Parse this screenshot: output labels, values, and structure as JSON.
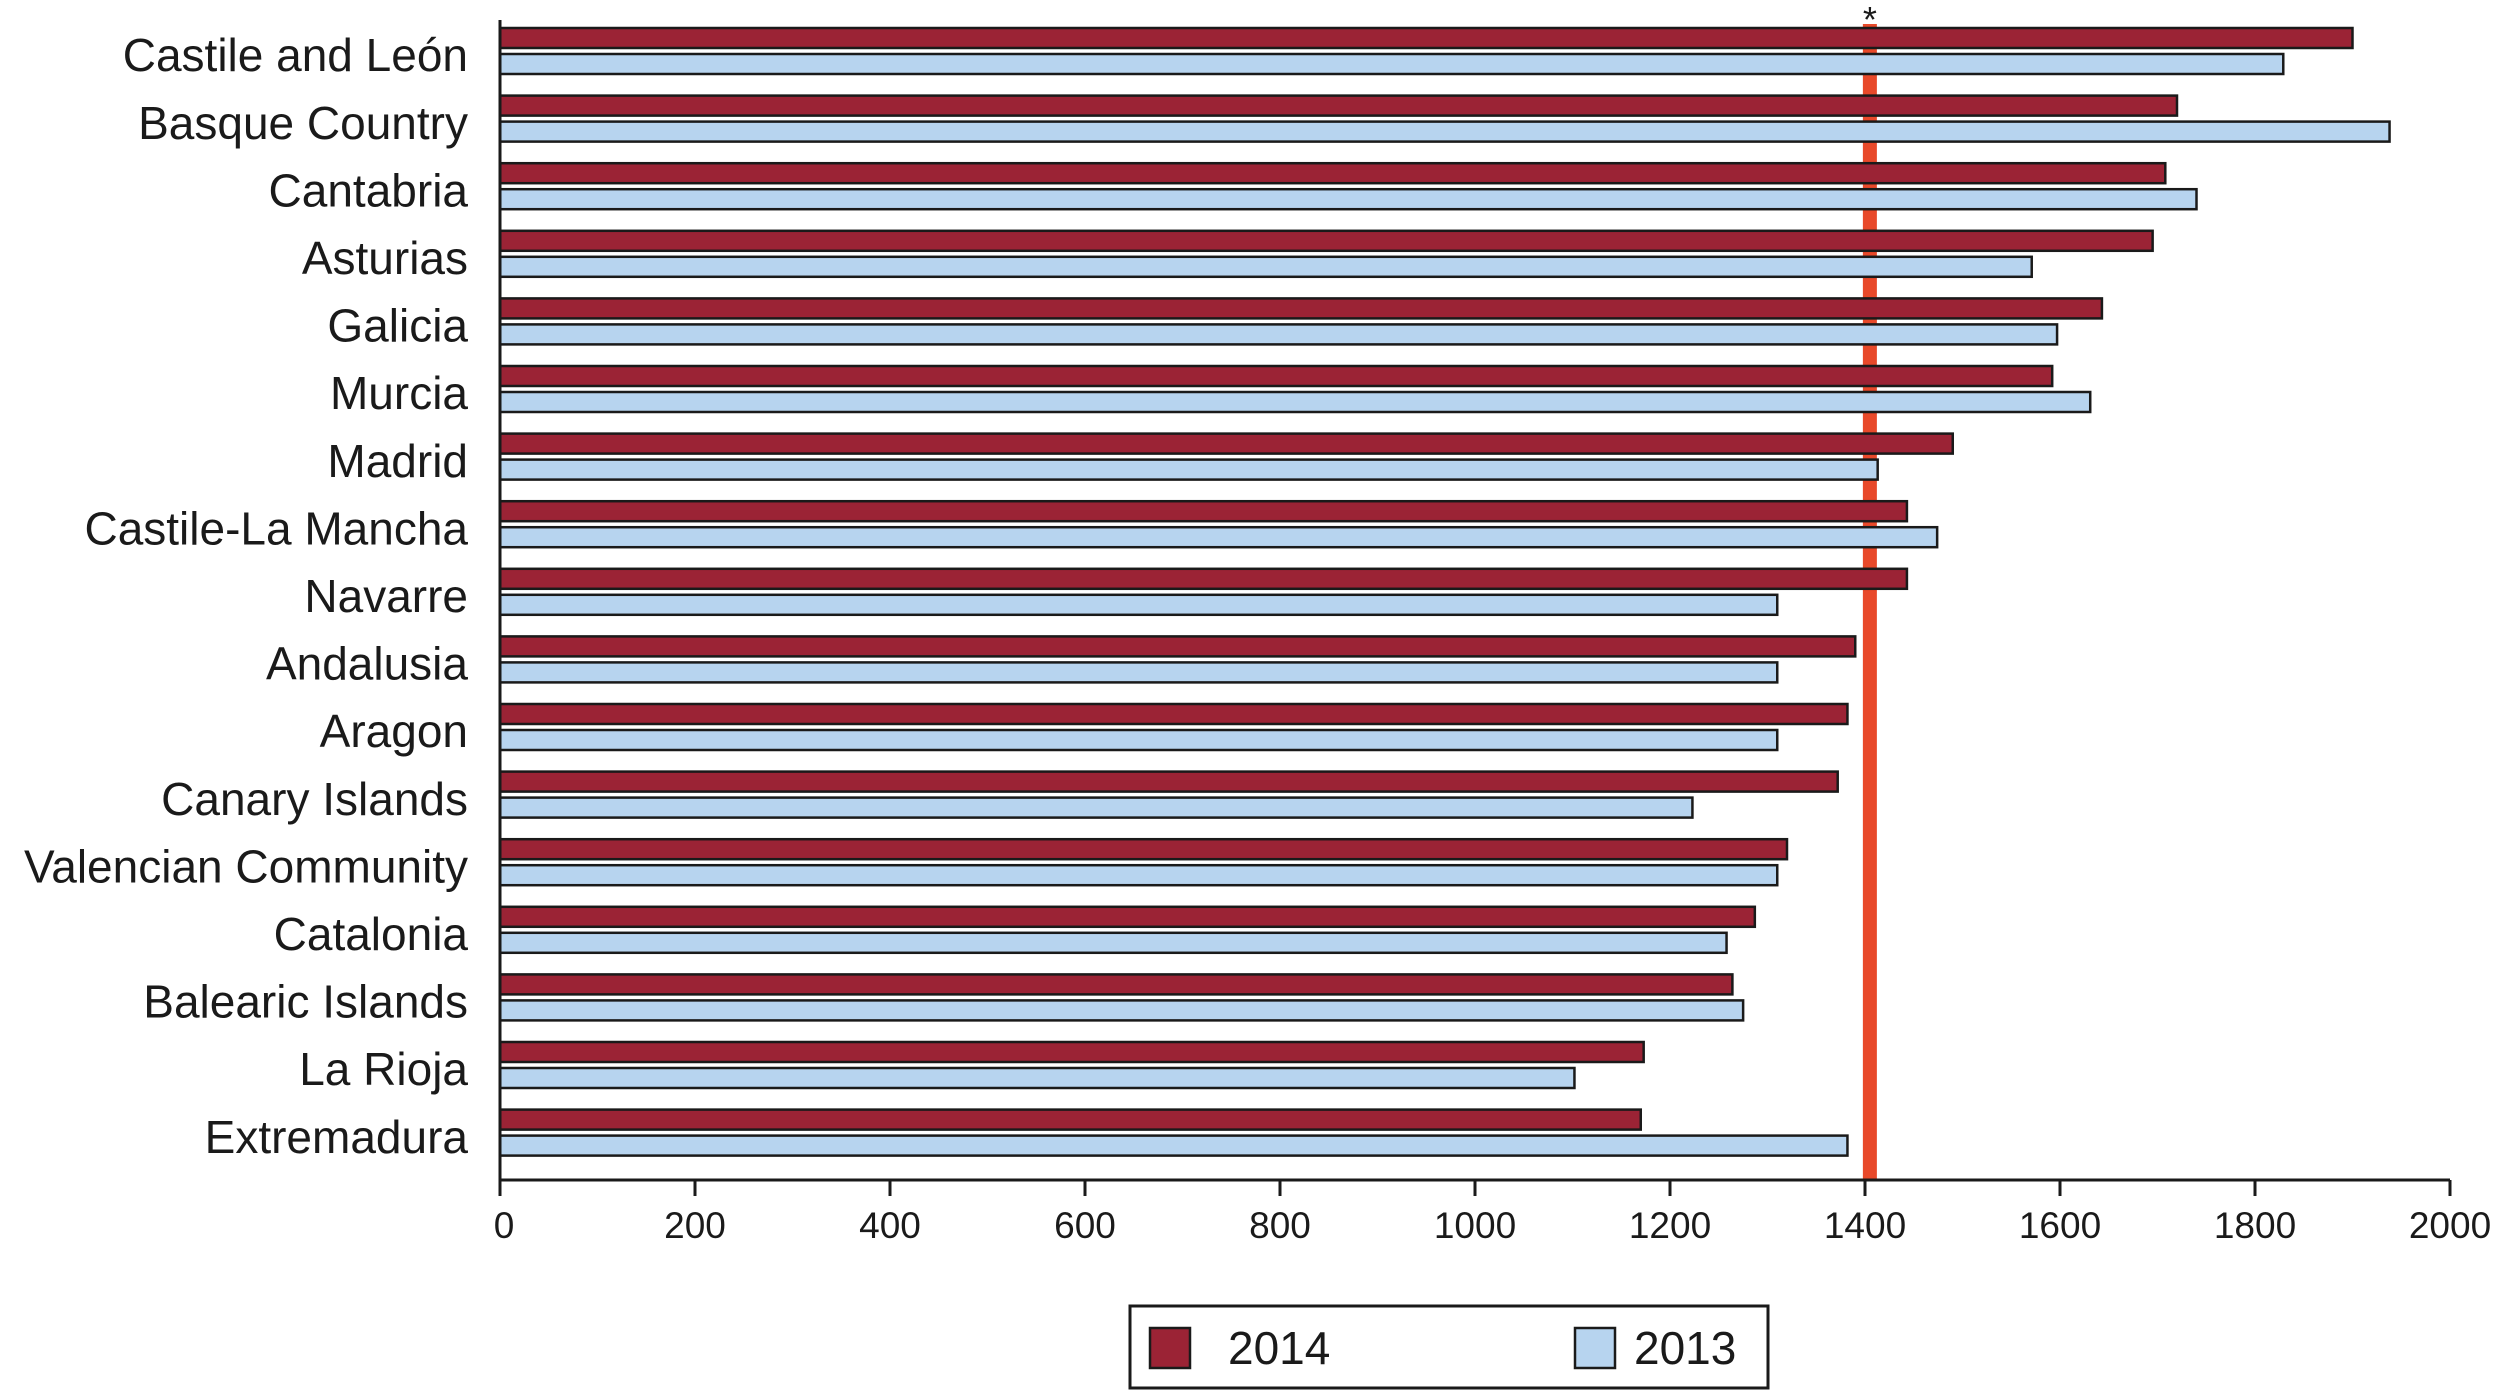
{
  "chart_data": {
    "type": "bar",
    "orientation": "horizontal",
    "categories": [
      "Castile and León",
      "Basque Country",
      "Cantabria",
      "Asturias",
      "Galicia",
      "Murcia",
      "Madrid",
      "Castile-La Mancha",
      "Navarre",
      "Andalusia",
      "Aragon",
      "Canary Islands",
      "Valencian Community",
      "Catalonia",
      "Balearic Islands",
      "La Rioja",
      "Extremadura"
    ],
    "series": [
      {
        "name": "2014",
        "color": "#9b2335",
        "values": [
          1900,
          1720,
          1708,
          1695,
          1643,
          1592,
          1490,
          1443,
          1443,
          1390,
          1382,
          1372,
          1320,
          1287,
          1264,
          1173,
          1170
        ]
      },
      {
        "name": "2013",
        "color": "#b7d4ef",
        "values": [
          1829,
          1938,
          1740,
          1571,
          1597,
          1631,
          1413,
          1474,
          1310,
          1310,
          1310,
          1223,
          1310,
          1258,
          1275,
          1102,
          1382
        ]
      }
    ],
    "xlim": [
      0,
      2000
    ],
    "x_ticks": [
      "0",
      "200",
      "400",
      "600",
      "800",
      "1000",
      "1200",
      "1400",
      "1600",
      "1800",
      "2000"
    ],
    "reference_line": {
      "value": 1405,
      "label": "*",
      "color": "#e8492a"
    },
    "legend": {
      "placement": "bottom-center",
      "entries": [
        "2014",
        "2013"
      ]
    },
    "title": "",
    "xlabel": "",
    "ylabel": "",
    "grid": false
  }
}
